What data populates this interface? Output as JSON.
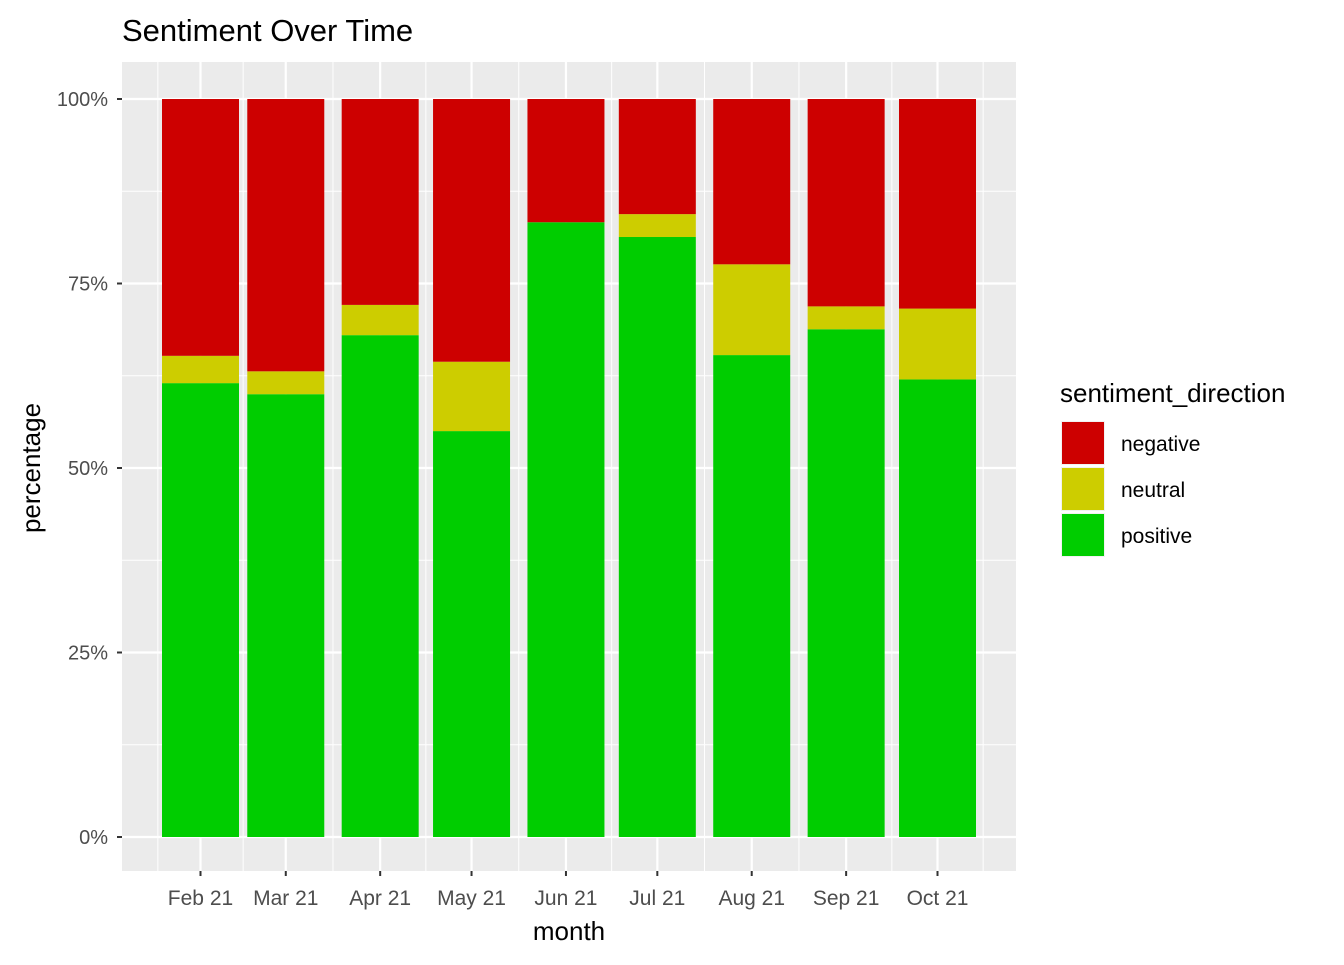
{
  "chart_data": {
    "type": "bar",
    "stacked": true,
    "title": "Sentiment Over Time",
    "xlabel": "month",
    "ylabel": "percentage",
    "categories": [
      "Feb 21",
      "Mar 21",
      "Apr 21",
      "May 21",
      "Jun 21",
      "Jul 21",
      "Aug 21",
      "Sep 21",
      "Oct 21"
    ],
    "x": [
      "2021-02",
      "2021-03",
      "2021-04",
      "2021-05",
      "2021-06",
      "2021-07",
      "2021-08",
      "2021-09",
      "2021-10"
    ],
    "series": [
      {
        "name": "positive",
        "color": "#00CD00",
        "values": [
          61.5,
          60.0,
          68.0,
          55.0,
          83.3,
          81.3,
          65.3,
          68.8,
          62.0
        ]
      },
      {
        "name": "neutral",
        "color": "#CDCD00",
        "values": [
          3.7,
          3.1,
          4.1,
          9.4,
          0.0,
          3.1,
          12.3,
          3.1,
          9.6
        ]
      },
      {
        "name": "negative",
        "color": "#CD0000",
        "values": [
          34.8,
          36.9,
          27.9,
          35.6,
          16.7,
          15.6,
          22.4,
          28.1,
          28.4
        ]
      }
    ],
    "ylim": [
      0,
      100
    ],
    "yticks": [
      "0%",
      "25%",
      "50%",
      "75%",
      "100%"
    ],
    "ytick_values": [
      0,
      25,
      50,
      75,
      100
    ],
    "grid": true,
    "legend": {
      "title": "sentiment_direction",
      "placement": "right",
      "items": [
        {
          "label": "negative",
          "color": "#CD0000"
        },
        {
          "label": "neutral",
          "color": "#CDCD00"
        },
        {
          "label": "positive",
          "color": "#00CD00"
        }
      ]
    },
    "colors": {
      "panel_background": "#EBEBEB",
      "grid": "#FFFFFF",
      "text": "#000000",
      "tick_text": "#4D4D4D"
    }
  }
}
